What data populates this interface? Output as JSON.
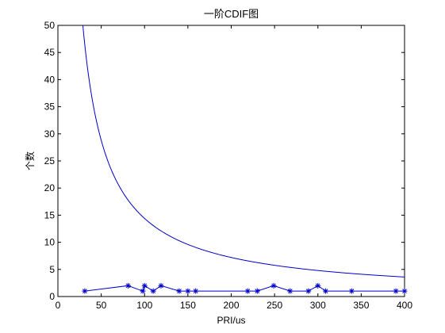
{
  "chart_data": {
    "type": "line",
    "title": "一阶CDIF图",
    "xlabel": "PRI/us",
    "ylabel": "个数",
    "xlim": [
      0,
      400
    ],
    "ylim": [
      0,
      50
    ],
    "xticks": [
      0,
      50,
      100,
      150,
      200,
      250,
      300,
      350,
      400
    ],
    "yticks": [
      0,
      5,
      10,
      15,
      20,
      25,
      30,
      35,
      40,
      45,
      50
    ],
    "grid": false,
    "color": "#0000cc",
    "series": [
      {
        "style": "line-with-star-markers",
        "x": [
          31,
          81,
          98,
          100,
          110,
          119,
          140,
          150,
          159,
          219,
          230,
          249,
          268,
          289,
          300,
          309,
          339,
          390,
          400
        ],
        "y": [
          1,
          2,
          1,
          2,
          1,
          2,
          1,
          1,
          1,
          1,
          1,
          2,
          1,
          1,
          2,
          1,
          1,
          1,
          1
        ]
      },
      {
        "style": "line",
        "function": "1440 / x",
        "x_range": [
          28.8,
          400
        ]
      }
    ]
  }
}
